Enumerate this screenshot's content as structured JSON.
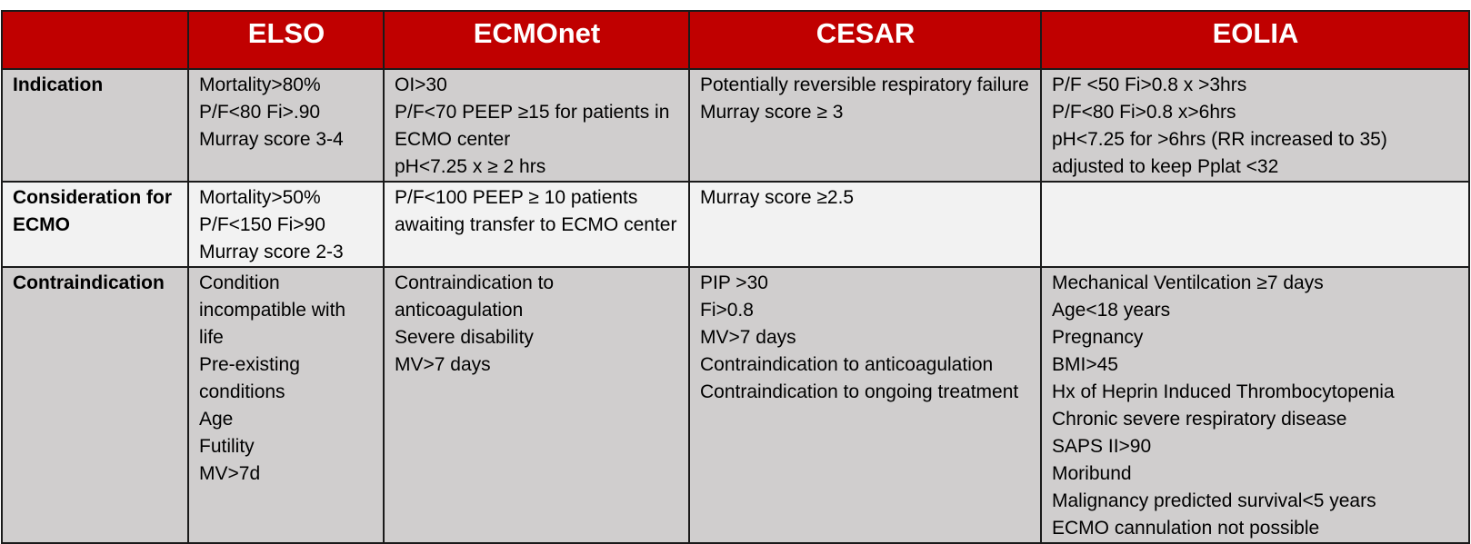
{
  "table": {
    "headers": [
      "",
      "ELSO",
      "ECMOnet",
      "CESAR",
      "EOLIA"
    ],
    "colors": {
      "header_bg": "#c00000",
      "header_text": "#ffffff",
      "row_dark": "#d0cece",
      "row_light": "#f2f2f2",
      "border": "#1a1a1a"
    },
    "rows": [
      {
        "label": "Indication",
        "cells": [
          [
            "Mortality>80%",
            "P/F<80 Fi>.90",
            "Murray score 3-4"
          ],
          [
            "OI>30",
            "P/F<70 PEEP ≥15 for patients in ECMO center",
            "pH<7.25 x ≥ 2 hrs"
          ],
          [
            "Potentially reversible respiratory failure",
            "Murray score ≥ 3"
          ],
          [
            "P/F <50 Fi>0.8 x >3hrs",
            "P/F<80 Fi>0.8 x>6hrs",
            "pH<7.25 for >6hrs (RR increased to 35) adjusted to keep Pplat <32"
          ]
        ]
      },
      {
        "label": "Consideration for ECMO",
        "cells": [
          [
            "Mortality>50%",
            "P/F<150 Fi>90",
            "Murray score 2-3"
          ],
          [
            "P/F<100 PEEP ≥ 10 patients awaiting transfer to ECMO center"
          ],
          [
            "Murray score ≥2.5"
          ],
          []
        ]
      },
      {
        "label": "Contraindication",
        "cells": [
          [
            "Condition incompatible with life",
            "Pre-existing conditions",
            "Age",
            "Futility",
            "MV>7d"
          ],
          [
            "Contraindication to anticoagulation",
            "Severe disability",
            "MV>7 days"
          ],
          [
            "PIP >30",
            "Fi>0.8",
            "MV>7 days",
            "Contraindication to anticoagulation",
            "Contraindication to ongoing treatment"
          ],
          [
            "Mechanical Ventilcation ≥7 days",
            "Age<18 years",
            "Pregnancy",
            "BMI>45",
            "Hx of Heprin Induced Thrombocytopenia",
            "Chronic severe respiratory disease",
            "SAPS II>90",
            "Moribund",
            "Malignancy predicted survival<5 years",
            "ECMO cannulation not possible"
          ]
        ]
      }
    ]
  }
}
